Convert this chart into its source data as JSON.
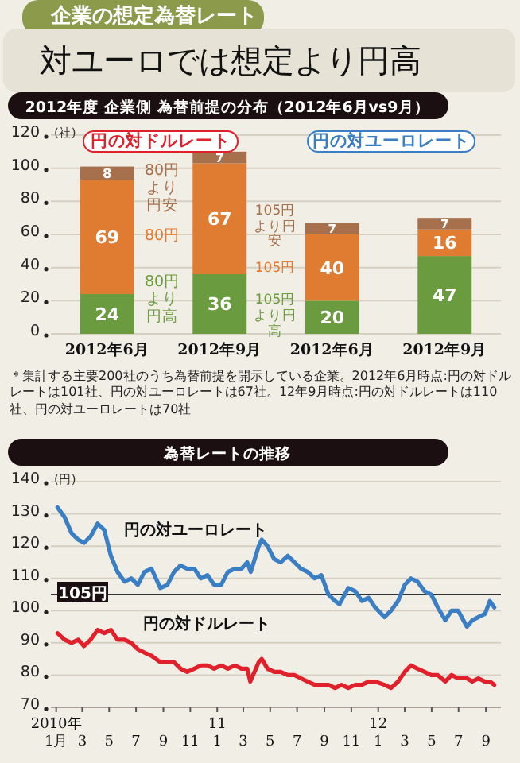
{
  "chart_data": [
    {
      "type": "other",
      "title": "企業の想定為替レート",
      "subtitle": "対ユーロでは想定より円高"
    },
    {
      "type": "bar",
      "title": "2012年度 企業側 為替前提の分布（2012年6月vs9月）",
      "stacked": true,
      "data_labels": true,
      "grid": "y",
      "ylabel": "(社)",
      "categories": [
        "2012年6月",
        "2012年9月",
        "2012年6月",
        "2012年9月"
      ],
      "series": [
        {
          "color": "#6b9b3f",
          "values": [
            24,
            36,
            20,
            47
          ]
        },
        {
          "color": "#e07c31",
          "values": [
            69,
            67,
            40,
            16
          ]
        },
        {
          "color": "#a5704b",
          "values": [
            8,
            7,
            7,
            7
          ]
        }
      ],
      "ylim": [
        0,
        120
      ],
      "yticks": [
        0,
        20,
        40,
        60,
        80,
        100,
        120
      ],
      "annotations": [
        "円の対ドルレート",
        "円の対ユーロレート",
        "80円より円安",
        "80円",
        "80円より円高",
        "105円より円安",
        "105円",
        "105円より円高",
        "＊集計する主要200社のうち為替前提を開示している企業。2012年6月時点:円の対ドルレートは101社、円の対ユーロレートは67社。12年9月時点:円の対ドルレートは110社、円の対ユーロレートは70社"
      ]
    },
    {
      "type": "line",
      "title": "為替レートの推移",
      "ylabel": "(円)",
      "grid": "y",
      "legend": false,
      "xlim": [
        "2009-12-20",
        "2012-10-05"
      ],
      "xticks": [
        {
          "value": "2010-01",
          "label": "2010年\n1月"
        },
        {
          "value": "2010-03",
          "label": "3"
        },
        {
          "value": "2010-05",
          "label": "5"
        },
        {
          "value": "2010-07",
          "label": "7"
        },
        {
          "value": "2010-09",
          "label": "9"
        },
        {
          "value": "2010-11",
          "label": "11"
        },
        {
          "value": "2011-01",
          "label": "11\n1"
        },
        {
          "value": "2011-03",
          "label": "3"
        },
        {
          "value": "2011-05",
          "label": "5"
        },
        {
          "value": "2011-07",
          "label": "7"
        },
        {
          "value": "2011-09",
          "label": "9"
        },
        {
          "value": "2011-11",
          "label": "11"
        },
        {
          "value": "2012-01",
          "label": "12\n1"
        },
        {
          "value": "2012-03",
          "label": "3"
        },
        {
          "value": "2012-05",
          "label": "5"
        },
        {
          "value": "2012-07",
          "label": "7"
        },
        {
          "value": "2012-09",
          "label": "9"
        }
      ],
      "ylim": [
        70,
        140
      ],
      "yticks": [
        70,
        80,
        90,
        100,
        110,
        120,
        130,
        140
      ],
      "ref_lines": [
        {
          "axis": "y",
          "value": 105,
          "label": "105円",
          "color": "#333333"
        }
      ],
      "series": [
        {
          "name": "円の対ユーロレート",
          "color": "#3a7ec3",
          "x": [
            "2010-01-04",
            "2010-01-20",
            "2010-02-05",
            "2010-02-20",
            "2010-03-05",
            "2010-03-20",
            "2010-04-05",
            "2010-04-20",
            "2010-05-05",
            "2010-05-20",
            "2010-06-05",
            "2010-06-20",
            "2010-07-05",
            "2010-07-20",
            "2010-08-05",
            "2010-08-25",
            "2010-09-10",
            "2010-09-25",
            "2010-10-10",
            "2010-10-25",
            "2010-11-10",
            "2010-11-25",
            "2010-12-10",
            "2010-12-25",
            "2011-01-10",
            "2011-01-25",
            "2011-02-10",
            "2011-02-25",
            "2011-03-10",
            "2011-03-18",
            "2011-04-05",
            "2011-04-12",
            "2011-04-25",
            "2011-05-10",
            "2011-05-25",
            "2011-06-10",
            "2011-06-25",
            "2011-07-10",
            "2011-07-25",
            "2011-08-10",
            "2011-08-25",
            "2011-09-10",
            "2011-09-25",
            "2011-10-05",
            "2011-10-25",
            "2011-11-10",
            "2011-11-25",
            "2011-12-10",
            "2011-12-25",
            "2012-01-15",
            "2012-01-30",
            "2012-02-15",
            "2012-03-01",
            "2012-03-15",
            "2012-03-30",
            "2012-04-15",
            "2012-04-30",
            "2012-05-15",
            "2012-06-01",
            "2012-06-15",
            "2012-06-30",
            "2012-07-20",
            "2012-08-01",
            "2012-08-15",
            "2012-08-30",
            "2012-09-10",
            "2012-09-20"
          ],
          "values": [
            132,
            129,
            124,
            122,
            121,
            123,
            127,
            125,
            117,
            112,
            109,
            110,
            108,
            112,
            113,
            107,
            108,
            112,
            114,
            113,
            113,
            110,
            111,
            108,
            108,
            112,
            113,
            113,
            115,
            112,
            120,
            122,
            120,
            116,
            115,
            117,
            115,
            113,
            112,
            110,
            111,
            105,
            103,
            102,
            107,
            106,
            103,
            104,
            101,
            98,
            100,
            103,
            108,
            110,
            109,
            106,
            105,
            101,
            97,
            100,
            100,
            95,
            97,
            98,
            99,
            103,
            101
          ]
        },
        {
          "name": "円の対ドルレート",
          "color": "#e0212b",
          "x": [
            "2010-01-04",
            "2010-01-20",
            "2010-02-05",
            "2010-02-20",
            "2010-03-05",
            "2010-03-20",
            "2010-04-05",
            "2010-04-20",
            "2010-05-05",
            "2010-05-20",
            "2010-06-05",
            "2010-06-20",
            "2010-07-05",
            "2010-07-20",
            "2010-08-05",
            "2010-08-25",
            "2010-09-10",
            "2010-09-25",
            "2010-10-10",
            "2010-10-25",
            "2010-11-10",
            "2010-11-25",
            "2010-12-10",
            "2010-12-25",
            "2011-01-10",
            "2011-01-25",
            "2011-02-10",
            "2011-02-25",
            "2011-03-10",
            "2011-03-17",
            "2011-04-05",
            "2011-04-12",
            "2011-04-25",
            "2011-05-10",
            "2011-05-25",
            "2011-06-10",
            "2011-06-25",
            "2011-07-10",
            "2011-07-25",
            "2011-08-10",
            "2011-08-25",
            "2011-09-10",
            "2011-09-25",
            "2011-10-10",
            "2011-10-25",
            "2011-11-10",
            "2011-11-25",
            "2011-12-10",
            "2011-12-25",
            "2012-01-15",
            "2012-01-30",
            "2012-02-15",
            "2012-03-01",
            "2012-03-15",
            "2012-03-30",
            "2012-04-15",
            "2012-04-30",
            "2012-05-15",
            "2012-06-01",
            "2012-06-15",
            "2012-06-30",
            "2012-07-20",
            "2012-08-01",
            "2012-08-15",
            "2012-08-30",
            "2012-09-10",
            "2012-09-20"
          ],
          "values": [
            93,
            91,
            90,
            91,
            89,
            91,
            94,
            93,
            94,
            91,
            91,
            90,
            88,
            87,
            86,
            84,
            84,
            84,
            82,
            81,
            82,
            83,
            83,
            82,
            83,
            82,
            83,
            82,
            82,
            78,
            84,
            85,
            82,
            81,
            81,
            80,
            80,
            79,
            78,
            77,
            77,
            77,
            76,
            77,
            76,
            77,
            77,
            78,
            78,
            77,
            76,
            78,
            81,
            83,
            82,
            81,
            80,
            80,
            78,
            80,
            79,
            79,
            78,
            79,
            78,
            78,
            77
          ]
        }
      ]
    }
  ]
}
